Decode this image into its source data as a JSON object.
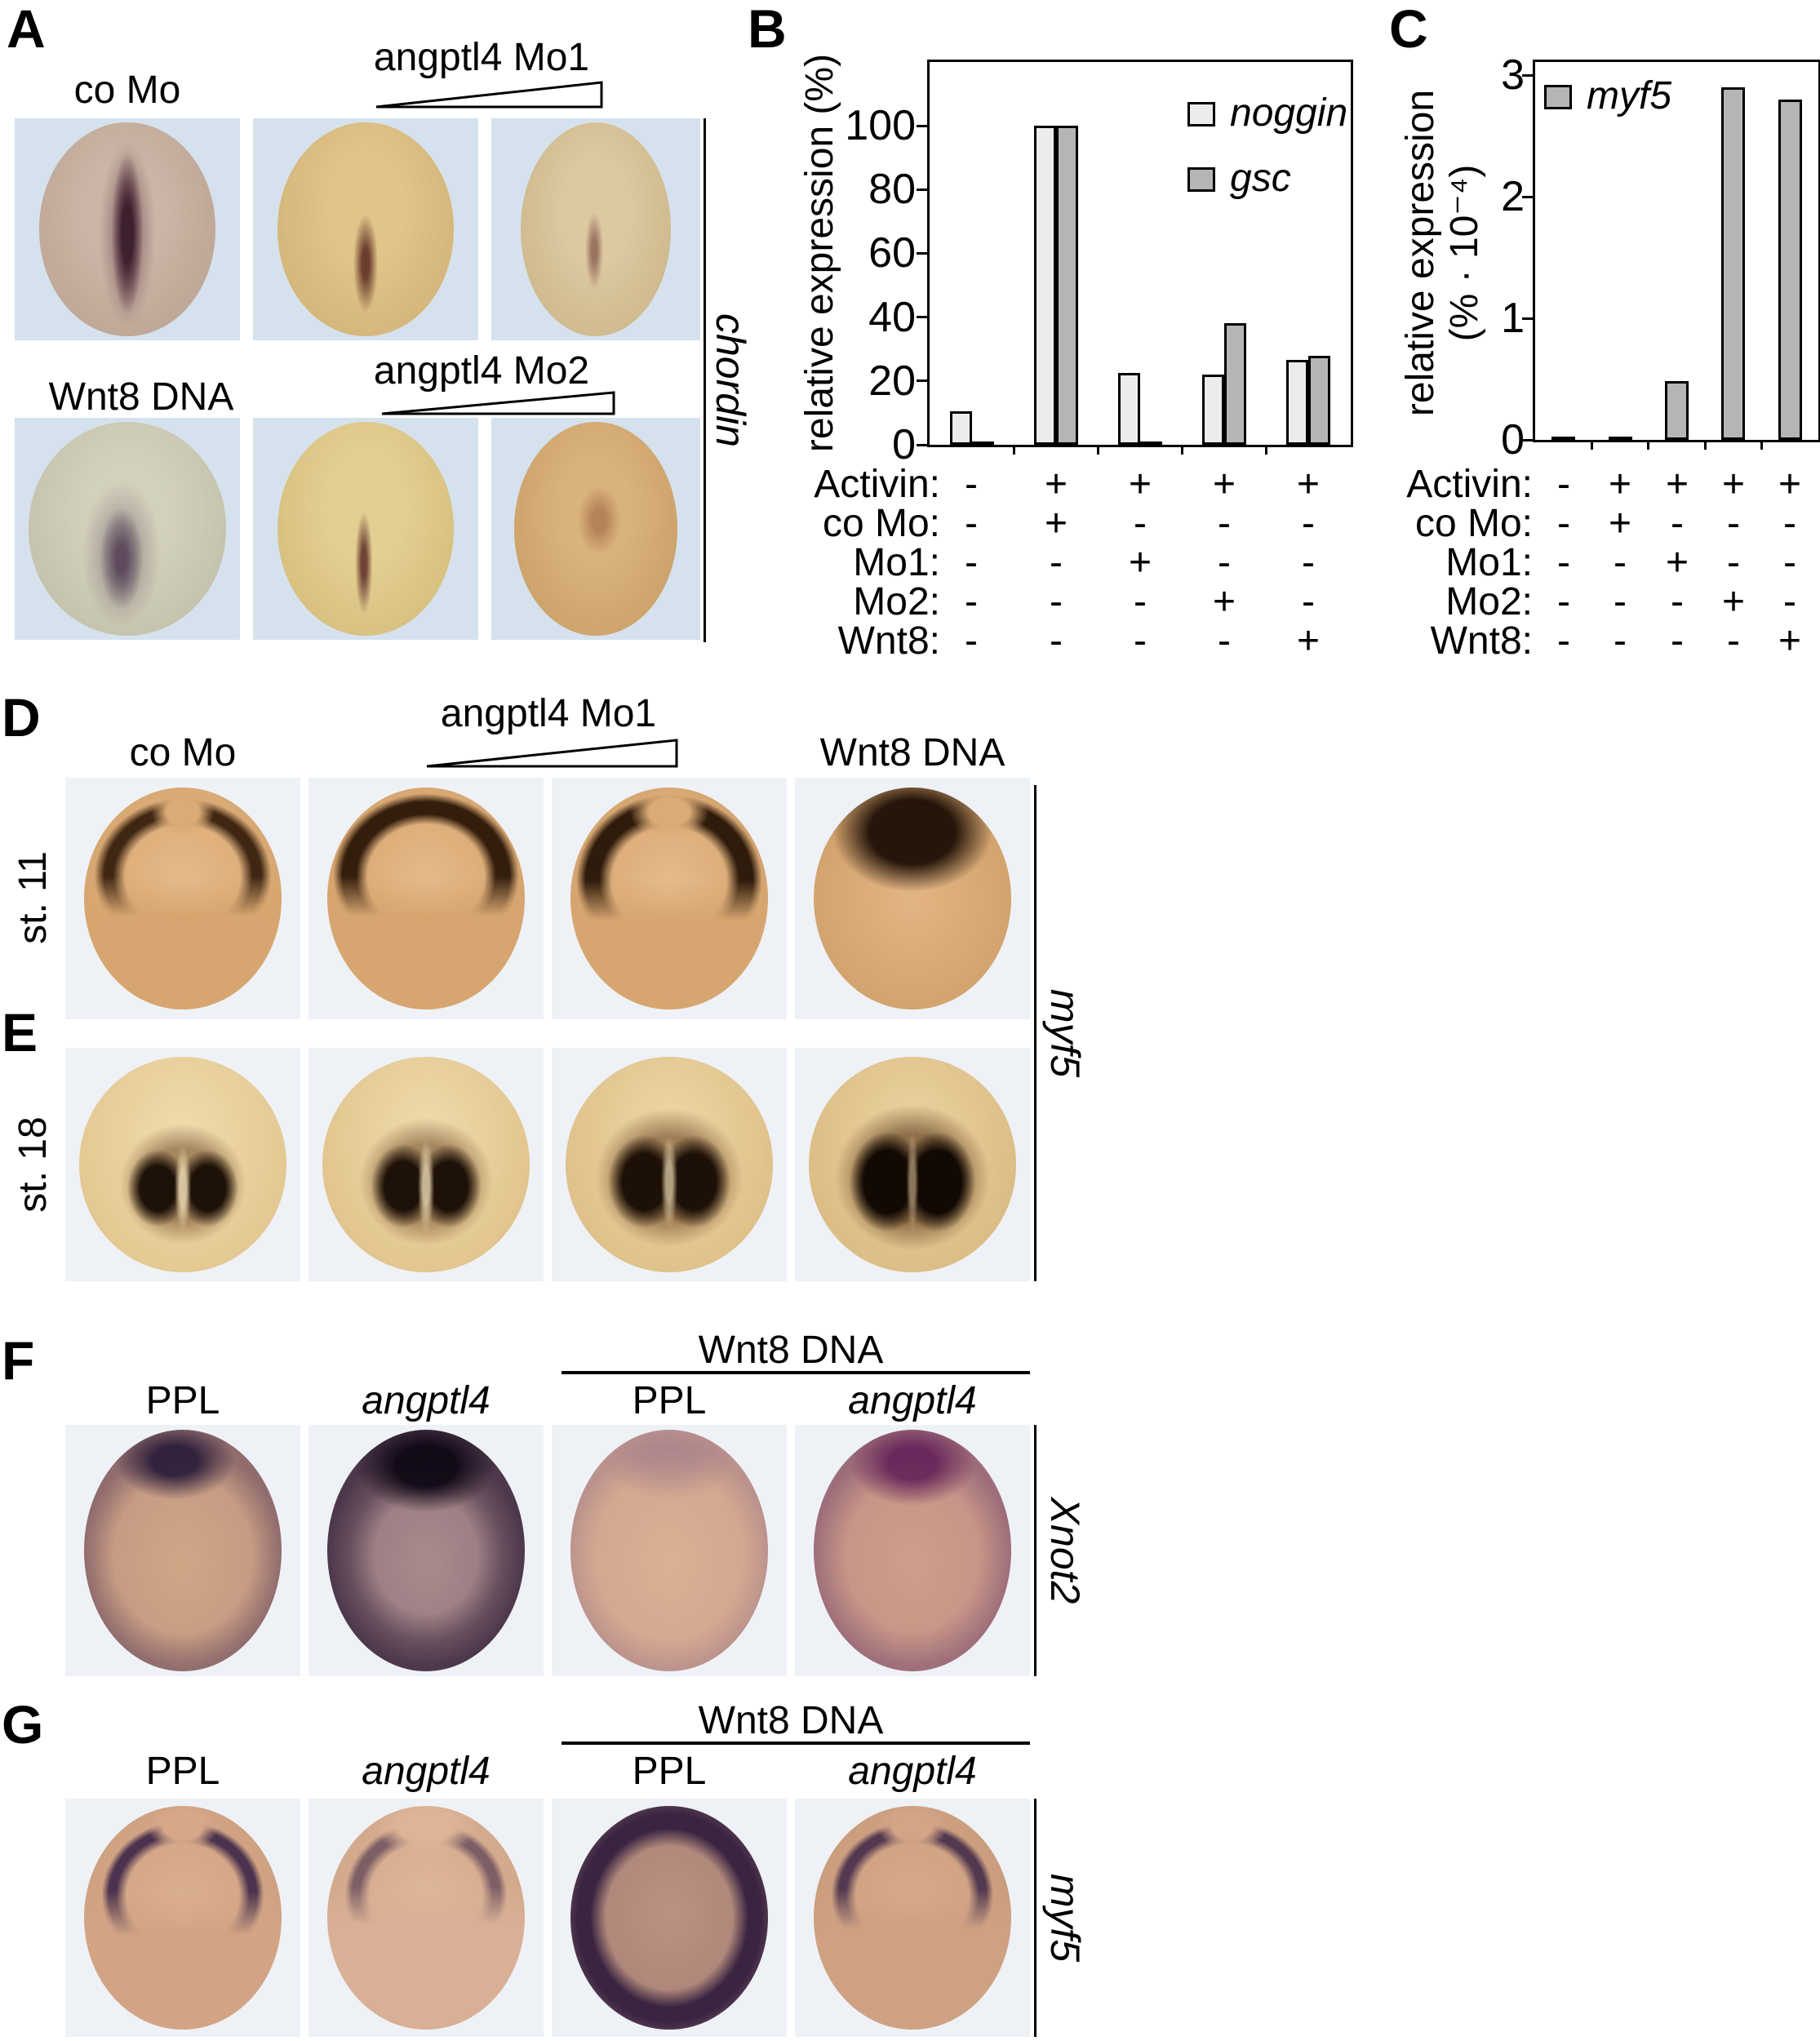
{
  "figure": {
    "background": "#ffffff",
    "embryo_panel_bg_blue": "#d5e2ee",
    "embryo_panel_bg_light": "#eef2f7"
  },
  "panels": {
    "A": {
      "letter": "A",
      "col1_label": "co Mo",
      "wedge1_label": "angptl4 Mo1",
      "row2_label": "Wnt8 DNA",
      "wedge2_label": "angptl4 Mo2",
      "gene_label": "chordin"
    },
    "B": {
      "letter": "B",
      "y_axis_label": "relative expression (%)"
    },
    "C": {
      "letter": "C",
      "y_axis_label_line1": "relative expression",
      "y_axis_label_line2": "(% · 10⁻⁴)"
    },
    "D": {
      "letter": "D",
      "stage_label": "st. 11",
      "col1_label": "co Mo",
      "wedge_label": "angptl4 Mo1",
      "col4_label": "Wnt8 DNA"
    },
    "E": {
      "letter": "E",
      "stage_label": "st. 18"
    },
    "DE": {
      "gene_label": "myf5"
    },
    "F": {
      "letter": "F",
      "group_label": "Wnt8 DNA",
      "col_labels": [
        "PPL",
        "angptl4",
        "PPL",
        "angptl4"
      ],
      "gene_label": "Xnot2"
    },
    "G": {
      "letter": "G",
      "group_label": "Wnt8 DNA",
      "col_labels": [
        "PPL",
        "angptl4",
        "PPL",
        "angptl4"
      ],
      "gene_label": "myf5"
    }
  },
  "conditions": {
    "rows": [
      {
        "label": "Activin:",
        "values": [
          "-",
          "+",
          "+",
          "+",
          "+"
        ]
      },
      {
        "label": "co Mo:",
        "values": [
          "-",
          "+",
          "-",
          "-",
          "-"
        ]
      },
      {
        "label": "Mo1:",
        "values": [
          "-",
          "-",
          "+",
          "-",
          "-"
        ]
      },
      {
        "label": "Mo2:",
        "values": [
          "-",
          "-",
          "-",
          "+",
          "-"
        ]
      },
      {
        "label": "Wnt8:",
        "values": [
          "-",
          "-",
          "-",
          "-",
          "+"
        ]
      }
    ]
  },
  "chart_data": [
    {
      "id": "B",
      "type": "bar",
      "title": "",
      "xlabel": "",
      "ylabel": "relative expression (%)",
      "ylim": [
        0,
        100
      ],
      "y_ticks": [
        0,
        20,
        40,
        60,
        80,
        100
      ],
      "grid": false,
      "legend_position": "top-right",
      "categories": [
        "untreated",
        "Activin + co Mo",
        "Activin + Mo1",
        "Activin + Mo2",
        "Activin + Wnt8"
      ],
      "series": [
        {
          "name": "noggin",
          "color": "#ececec",
          "values": [
            10.5,
            100,
            22.5,
            22,
            26.5
          ]
        },
        {
          "name": "gsc",
          "color": "#b5b5b5",
          "values": [
            1,
            100,
            1,
            38,
            28
          ]
        }
      ],
      "x_condition_rows": [
        {
          "label": "Activin:",
          "values": [
            "-",
            "+",
            "+",
            "+",
            "+"
          ]
        },
        {
          "label": "co Mo:",
          "values": [
            "-",
            "+",
            "-",
            "-",
            "-"
          ]
        },
        {
          "label": "Mo1:",
          "values": [
            "-",
            "-",
            "+",
            "-",
            "-"
          ]
        },
        {
          "label": "Mo2:",
          "values": [
            "-",
            "-",
            "-",
            "+",
            "-"
          ]
        },
        {
          "label": "Wnt8:",
          "values": [
            "-",
            "-",
            "-",
            "-",
            "+"
          ]
        }
      ]
    },
    {
      "id": "C",
      "type": "bar",
      "title": "",
      "xlabel": "",
      "ylabel": "relative expression (% · 10⁻⁴)",
      "ylim": [
        0,
        3
      ],
      "y_ticks": [
        0,
        1,
        2,
        3
      ],
      "grid": false,
      "legend_position": "top-left",
      "categories": [
        "untreated",
        "Activin + co Mo",
        "Activin + Mo1",
        "Activin + Mo2",
        "Activin + Wnt8"
      ],
      "series": [
        {
          "name": "myf5",
          "color": "#b5b5b5",
          "values": [
            0.02,
            0.02,
            0.48,
            2.9,
            2.8
          ]
        }
      ],
      "x_condition_rows": [
        {
          "label": "Activin:",
          "values": [
            "-",
            "+",
            "+",
            "+",
            "+"
          ]
        },
        {
          "label": "co Mo:",
          "values": [
            "-",
            "+",
            "-",
            "-",
            "-"
          ]
        },
        {
          "label": "Mo1:",
          "values": [
            "-",
            "-",
            "+",
            "-",
            "-"
          ]
        },
        {
          "label": "Mo2:",
          "values": [
            "-",
            "-",
            "-",
            "+",
            "-"
          ]
        },
        {
          "label": "Wnt8:",
          "values": [
            "-",
            "-",
            "-",
            "-",
            "+"
          ]
        }
      ]
    }
  ]
}
